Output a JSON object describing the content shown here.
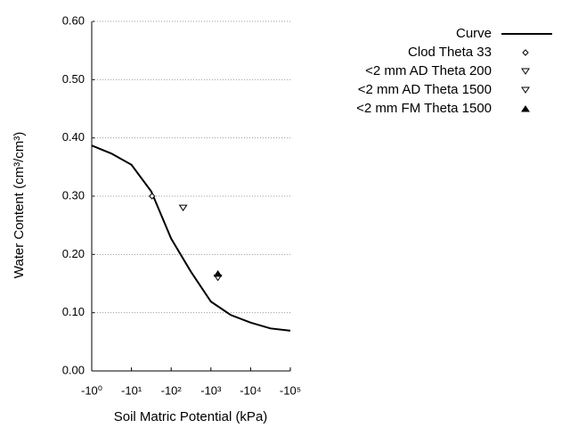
{
  "chart_data": {
    "type": "line",
    "xlabel": "Soil Matric Potential (kPa)",
    "ylabel": "Water Content (cm³/cm³)",
    "xlog": true,
    "xlim": [
      1,
      100000
    ],
    "xticks": [
      {
        "value": 1,
        "label": "-10⁰"
      },
      {
        "value": 10,
        "label": "-10¹"
      },
      {
        "value": 100,
        "label": "-10²"
      },
      {
        "value": 1000,
        "label": "-10³"
      },
      {
        "value": 10000,
        "label": "-10⁴"
      },
      {
        "value": 100000,
        "label": "-10⁵"
      }
    ],
    "ylim": [
      0,
      0.6
    ],
    "yticks": [
      {
        "value": 0,
        "label": "0.00"
      },
      {
        "value": 0.1,
        "label": "0.10"
      },
      {
        "value": 0.2,
        "label": "0.20"
      },
      {
        "value": 0.3,
        "label": "0.30"
      },
      {
        "value": 0.4,
        "label": "0.40"
      },
      {
        "value": 0.5,
        "label": "0.50"
      },
      {
        "value": 0.6,
        "label": "0.60"
      }
    ],
    "grid": true,
    "legend": "right",
    "series": [
      {
        "name": "Curve",
        "color": "#000000",
        "mode": "line",
        "x": [
          1,
          3.16,
          10,
          31.6,
          100,
          316,
          1000,
          3162,
          10000,
          31623,
          100000
        ],
        "values": [
          0.387,
          0.373,
          0.354,
          0.308,
          0.227,
          0.17,
          0.119,
          0.096,
          0.083,
          0.073,
          0.069
        ]
      },
      {
        "name": "Clod Theta 33",
        "color": "#000000",
        "mode": "marker",
        "marker": "diamond",
        "x": [
          33
        ],
        "values": [
          0.3
        ]
      },
      {
        "name": "<2 mm AD Theta 200",
        "color": "#000000",
        "mode": "marker",
        "marker": "triangle-down",
        "x": [
          200
        ],
        "values": [
          0.28
        ]
      },
      {
        "name": "<2 mm AD Theta 1500",
        "color": "#000000",
        "mode": "marker",
        "marker": "triangle-down",
        "x": [
          1500
        ],
        "values": [
          0.16
        ]
      },
      {
        "name": "<2 mm FM Theta 1500",
        "color": "#000000",
        "mode": "marker",
        "marker": "triangle-up-filled",
        "x": [
          1500
        ],
        "values": [
          0.167
        ]
      }
    ]
  }
}
